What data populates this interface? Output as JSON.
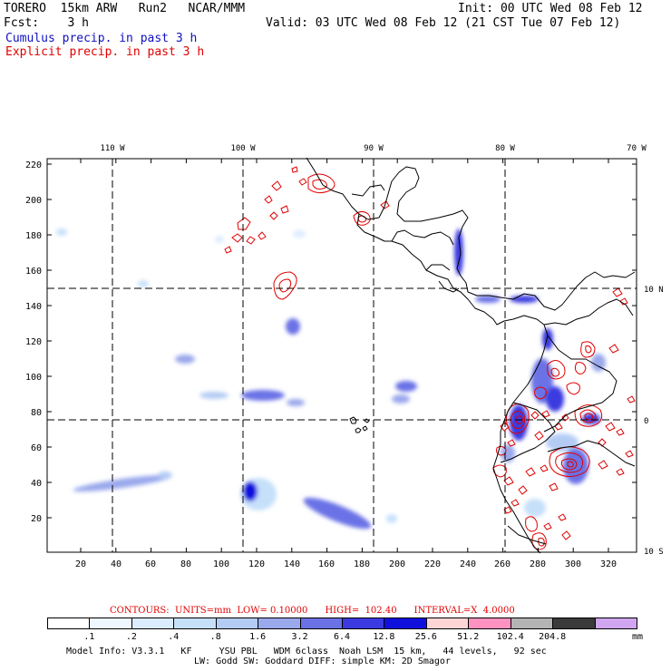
{
  "header": {
    "model_line": "TORERO  15km ARW   Run2   NCAR/MMM",
    "fcst_line": "Fcst:    3 h",
    "init_line": "Init: 00 UTC Wed 08 Feb 12",
    "valid_line": "Valid: 03 UTC Wed 08 Feb 12 (21 CST Tue 07 Feb 12)",
    "cumulus_label": "Cumulus precip. in past 3 h",
    "explicit_label": "Explicit precip. in past 3 h"
  },
  "colors": {
    "cumulus": "#1010c0",
    "explicit": "#e00000",
    "coast": "#000000"
  },
  "map": {
    "lon_labels": [
      "110 W",
      "100 W",
      "90 W",
      "80 W",
      "70 W"
    ],
    "lat_labels": [
      "10 N",
      "0",
      "10 S"
    ],
    "y_ticks": [
      "220",
      "200",
      "180",
      "160",
      "140",
      "120",
      "100",
      "80",
      "60",
      "40",
      "20"
    ],
    "x_ticks": [
      "20",
      "40",
      "60",
      "80",
      "100",
      "120",
      "140",
      "160",
      "180",
      "200",
      "220",
      "240",
      "260",
      "280",
      "300",
      "320"
    ]
  },
  "contour_info": {
    "text": "CONTOURS:  UNITS=mm  LOW= 0.10000      HIGH=  102.40      INTERVAL=X  4.0000"
  },
  "colorbar": {
    "colors": [
      "#ffffff",
      "#eef6ff",
      "#dcecff",
      "#c6e0fa",
      "#b4ccf4",
      "#9aa8ec",
      "#6a72e6",
      "#3a3ae0",
      "#1010dd",
      "#ffd6d6",
      "#ff92c0",
      "#b4b4b4",
      "#3a3a3a",
      "#d0a6f0"
    ],
    "labels": [
      ".1",
      ".2",
      ".4",
      ".8",
      "1.6",
      "3.2",
      "6.4",
      "12.8",
      "25.6",
      "51.2",
      "102.4",
      "204.8"
    ],
    "units": "mm"
  },
  "footer": {
    "line1": "Model Info: V3.3.1   KF     YSU PBL   WDM 6class  Noah LSM  15 km,   44 levels,   92 sec",
    "line2": "LW: Godd SW: Goddard DIFF: simple KM: 2D Smagor"
  }
}
